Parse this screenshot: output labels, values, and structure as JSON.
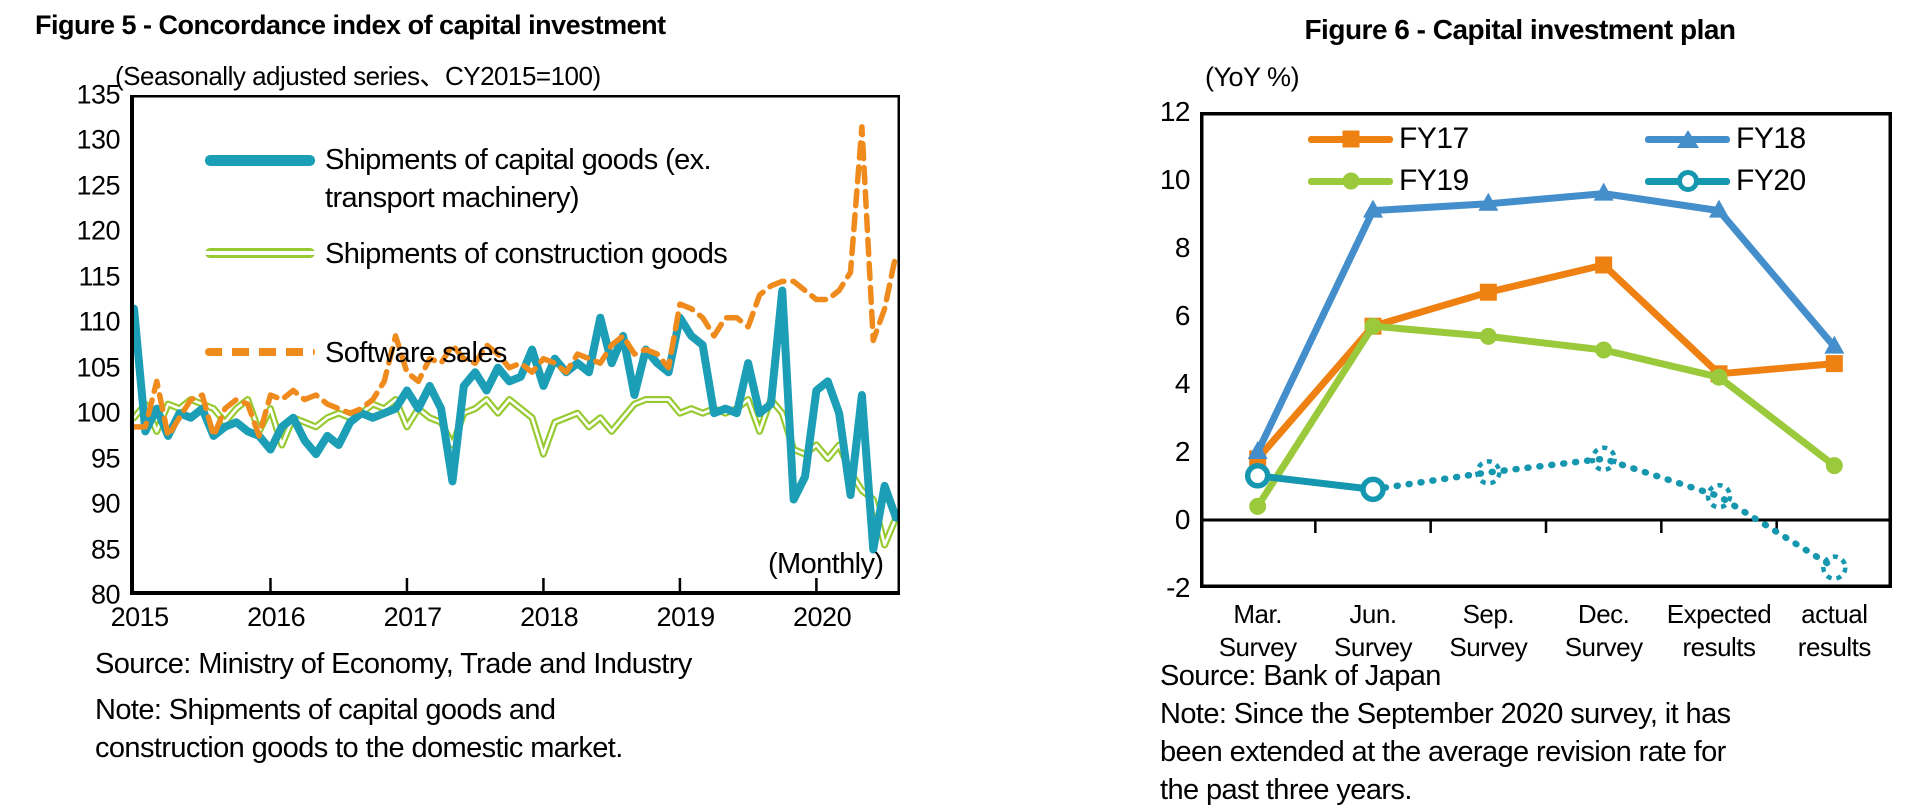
{
  "chart_data": [
    {
      "type": "line",
      "title": "Figure 5 - Concordance index of capital investment",
      "subtitle": "(Seasonally adjusted series、CY2015=100)",
      "x_unit_label": "(Monthly)",
      "source": "Source: Ministry of Economy, Trade and Industry",
      "note_lines": [
        "Note: Shipments of capital goods and",
        "construction goods to the domestic market."
      ],
      "xlabel": "",
      "ylabel": "",
      "ylim": [
        80,
        135
      ],
      "yticks": [
        135,
        130,
        125,
        120,
        115,
        110,
        105,
        100,
        95,
        90,
        85,
        80
      ],
      "x_tick_years": [
        "2015",
        "2016",
        "2017",
        "2018",
        "2019",
        "2020"
      ],
      "x_frequency": "monthly",
      "x_start": "2015-01",
      "x_end": "2020-08",
      "grid": false,
      "legend_position": "top-left-inside",
      "series": [
        {
          "name": "Shipments of capital goods (ex. transport machinery)",
          "legend_lines": [
            "Shipments of capital goods (ex.",
            "transport machinery)"
          ],
          "color": "#1b9eb6",
          "style": "solid-thick",
          "values": [
            111.5,
            98,
            100.5,
            97.5,
            100,
            99.5,
            100.5,
            97.5,
            98.5,
            99,
            98,
            97.5,
            96,
            98.5,
            99.5,
            97,
            95.5,
            97.5,
            96.5,
            99,
            100,
            99.5,
            100,
            100.5,
            102.5,
            100.5,
            103,
            100.5,
            92.5,
            103,
            104.5,
            102.5,
            105,
            103.5,
            104,
            107,
            103,
            106,
            104.5,
            105.5,
            104.5,
            110.5,
            105.5,
            108.5,
            102,
            107,
            105.5,
            104.5,
            110.5,
            108.5,
            107.5,
            100,
            100.5,
            100,
            105.5,
            100,
            101,
            113.5,
            90.5,
            93,
            102.5,
            103.5,
            100,
            91,
            102,
            85,
            92,
            88.5
          ]
        },
        {
          "name": "Shipments of construction goods",
          "color": "#97c930",
          "style": "double-line",
          "values": [
            99.5,
            101,
            98,
            101,
            100.5,
            101.5,
            101,
            100.5,
            99,
            100.5,
            101.5,
            98,
            100.5,
            96.5,
            99.5,
            99,
            98.5,
            99.5,
            100,
            99.5,
            100,
            101,
            100.5,
            101.5,
            98.5,
            100.5,
            99.5,
            99,
            96.5,
            100,
            100.5,
            101.5,
            100,
            101.5,
            100.5,
            99.5,
            95.5,
            99,
            99.5,
            100,
            98.5,
            99.5,
            98,
            99.5,
            101,
            101.5,
            101.5,
            101.5,
            100,
            100.5,
            100,
            100.5,
            100,
            100.5,
            101.5,
            98,
            101.5,
            100,
            96,
            95.5,
            96.5,
            95,
            96.5,
            93.5,
            91.5,
            90.5,
            85.5,
            88.5
          ]
        },
        {
          "name": "Software sales",
          "color": "#ef8b1d",
          "style": "dashed",
          "values": [
            98.5,
            98.5,
            103.5,
            97.5,
            99.5,
            101.5,
            102,
            97.5,
            100.5,
            101.5,
            101,
            97.5,
            102,
            101.5,
            102.5,
            101.5,
            102,
            101,
            100.5,
            100,
            100.5,
            101.5,
            103.5,
            108.5,
            104.5,
            103.5,
            106,
            105.5,
            107.5,
            106,
            105.5,
            107.5,
            106.5,
            105,
            105.5,
            104.5,
            106,
            105.5,
            104.5,
            106.5,
            106,
            105.5,
            107.5,
            108.5,
            106.5,
            107,
            106.5,
            105,
            112,
            111.5,
            110.5,
            108.5,
            110.5,
            110.5,
            109.5,
            113,
            114,
            114.5,
            114.5,
            113.5,
            112.5,
            112.5,
            113.5,
            115.5,
            131.5,
            108,
            111.5,
            117.5
          ]
        }
      ]
    },
    {
      "type": "line",
      "title": "Figure 6 - Capital investment plan",
      "subtitle": "(YoY %)",
      "source": "Source: Bank of Japan",
      "note_lines": [
        "Note: Since the September 2020 survey, it has",
        "been extended at the average revision rate for",
        "the past three years."
      ],
      "ylim": [
        -2,
        12
      ],
      "yticks": [
        12,
        10,
        8,
        6,
        4,
        2,
        0,
        -2
      ],
      "categories": [
        "Mar.",
        "Jun.",
        "Sep.",
        "Dec.",
        "Expected",
        "actual"
      ],
      "categories_line2": [
        "Survey",
        "Survey",
        "Survey",
        "Survey",
        "results",
        "results"
      ],
      "grid": false,
      "zero_axis_line": true,
      "legend_position": "top-inside-two-columns",
      "series": [
        {
          "name": "FY17",
          "color": "#ef8113",
          "marker": "square",
          "values": [
            1.8,
            5.7,
            6.7,
            7.5,
            4.3,
            4.6
          ]
        },
        {
          "name": "FY18",
          "color": "#448fcb",
          "marker": "triangle",
          "values": [
            2.0,
            9.1,
            9.3,
            9.6,
            9.1,
            5.1
          ]
        },
        {
          "name": "FY19",
          "color": "#9bc93c",
          "marker": "circle",
          "values": [
            0.4,
            5.7,
            5.4,
            5.0,
            4.2,
            1.6
          ]
        },
        {
          "name": "FY20",
          "color": "#1697b0",
          "marker": "open-circle",
          "values": [
            1.3,
            0.9,
            1.4,
            1.8,
            0.7,
            -1.4
          ],
          "solid_until_index": 1,
          "projected_from_index": 1,
          "projected_style": "dotted"
        }
      ]
    }
  ]
}
